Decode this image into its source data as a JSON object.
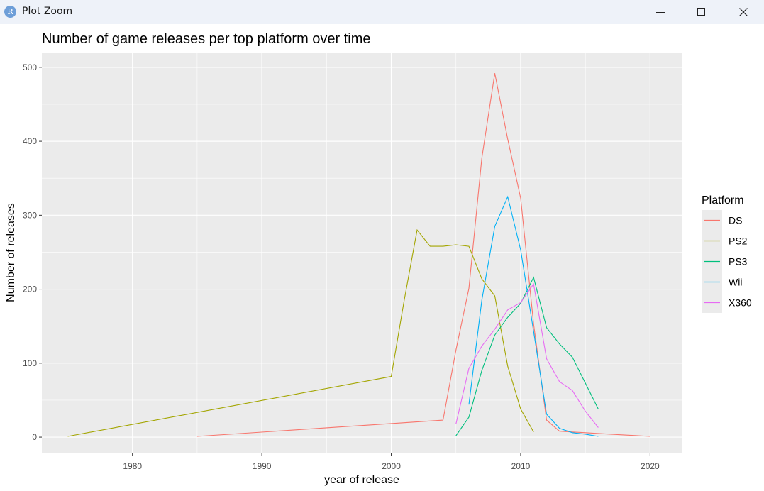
{
  "window": {
    "app_icon_letter": "R",
    "title": "Plot Zoom"
  },
  "colors": {
    "panel_bg": "#ebebeb",
    "grid": "#ffffff",
    "legend_key_bg": "#ebebeb"
  },
  "chart_data": {
    "type": "line",
    "title": "Number of game releases per top platform over time",
    "xlabel": "year of release",
    "ylabel": "Number of releases",
    "xlim": [
      1973,
      2022.5
    ],
    "ylim": [
      -22,
      520
    ],
    "x_ticks": [
      1980,
      1990,
      2000,
      2010,
      2020
    ],
    "y_ticks": [
      0,
      100,
      200,
      300,
      400,
      500
    ],
    "grid": true,
    "legend": {
      "title": "Platform",
      "position": "right"
    },
    "series": [
      {
        "name": "DS",
        "color": "#f8766d",
        "points": [
          [
            1985,
            1
          ],
          [
            2004,
            23
          ],
          [
            2005,
            118
          ],
          [
            2006,
            201
          ],
          [
            2007,
            377
          ],
          [
            2008,
            492
          ],
          [
            2009,
            403
          ],
          [
            2010,
            323
          ],
          [
            2011,
            153
          ],
          [
            2012,
            23
          ],
          [
            2013,
            8
          ],
          [
            2014,
            7
          ],
          [
            2015,
            6
          ],
          [
            2016,
            5
          ],
          [
            2020,
            1
          ]
        ]
      },
      {
        "name": "PS2",
        "color": "#a3a500",
        "points": [
          [
            1975,
            1
          ],
          [
            2000,
            82
          ],
          [
            2001,
            185
          ],
          [
            2002,
            280
          ],
          [
            2003,
            258
          ],
          [
            2004,
            258
          ],
          [
            2005,
            260
          ],
          [
            2006,
            258
          ],
          [
            2007,
            214
          ],
          [
            2008,
            191
          ],
          [
            2009,
            96
          ],
          [
            2010,
            38
          ],
          [
            2011,
            7
          ]
        ]
      },
      {
        "name": "PS3",
        "color": "#00bf7d",
        "points": [
          [
            2005,
            2
          ],
          [
            2006,
            27
          ],
          [
            2007,
            90
          ],
          [
            2008,
            138
          ],
          [
            2009,
            162
          ],
          [
            2010,
            181
          ],
          [
            2011,
            216
          ],
          [
            2012,
            148
          ],
          [
            2013,
            126
          ],
          [
            2014,
            108
          ],
          [
            2015,
            73
          ],
          [
            2016,
            38
          ]
        ]
      },
      {
        "name": "Wii",
        "color": "#00b0f6",
        "points": [
          [
            2006,
            44
          ],
          [
            2007,
            185
          ],
          [
            2008,
            285
          ],
          [
            2009,
            325
          ],
          [
            2010,
            253
          ],
          [
            2011,
            143
          ],
          [
            2012,
            31
          ],
          [
            2013,
            12
          ],
          [
            2014,
            6
          ],
          [
            2015,
            4
          ],
          [
            2016,
            1
          ]
        ]
      },
      {
        "name": "X360",
        "color": "#e76bf3",
        "points": [
          [
            2005,
            18
          ],
          [
            2006,
            93
          ],
          [
            2007,
            123
          ],
          [
            2008,
            146
          ],
          [
            2009,
            172
          ],
          [
            2010,
            182
          ],
          [
            2011,
            207
          ],
          [
            2012,
            106
          ],
          [
            2013,
            75
          ],
          [
            2014,
            63
          ],
          [
            2015,
            35
          ],
          [
            2016,
            13
          ]
        ]
      }
    ]
  }
}
